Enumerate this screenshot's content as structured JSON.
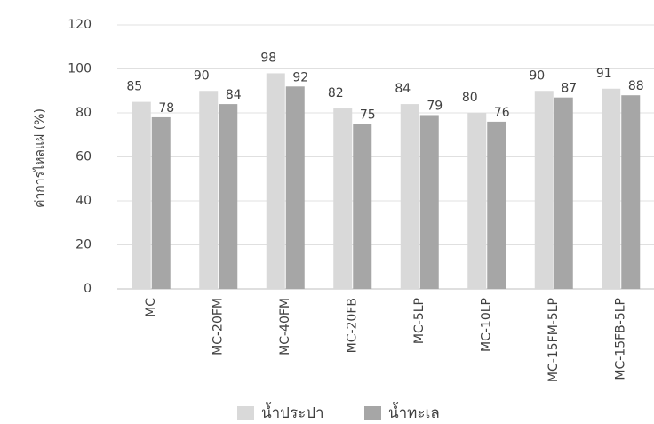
{
  "chart_data": {
    "type": "bar",
    "y_label": "ค่าการไหลแผ่ (%)",
    "categories": [
      "MC",
      "MC-20FM",
      "MC-40FM",
      "MC-20FB",
      "MC-5LP",
      "MC-10LP",
      "MC-15FM-5LP",
      "MC-15FB-5LP"
    ],
    "series": [
      {
        "name": "น้ำประปา",
        "color": "#d9d9d9",
        "values": [
          85,
          90,
          98,
          82,
          84,
          80,
          90,
          91
        ]
      },
      {
        "name": "น้ำทะเล",
        "color": "#a6a6a6",
        "values": [
          78,
          84,
          92,
          75,
          79,
          76,
          87,
          88
        ]
      }
    ],
    "ylim": [
      0,
      120
    ],
    "yticks": [
      0,
      20,
      40,
      60,
      80,
      100,
      120
    ],
    "grid": true,
    "legend": "bottom"
  }
}
